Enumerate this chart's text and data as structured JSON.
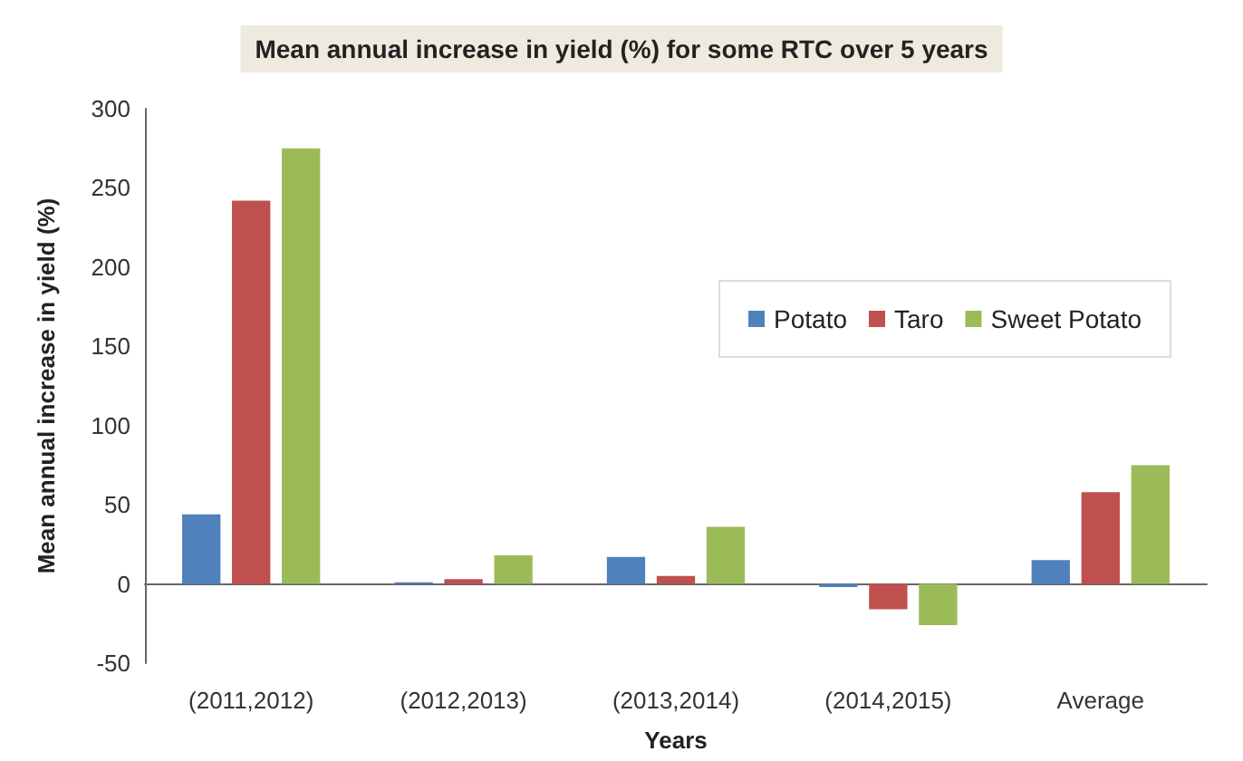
{
  "chart_data": {
    "type": "bar",
    "title": "Mean annual increase in yield (%) for some RTC over 5 years",
    "xlabel": "Years",
    "ylabel": "Mean annual increase in yield (%)",
    "categories": [
      "(2011,2012)",
      "(2012,2013)",
      "(2013,2014)",
      "(2014,2015)",
      "Average"
    ],
    "series": [
      {
        "name": "Potato",
        "color": "#4f81bd",
        "values": [
          44,
          1,
          17,
          -2,
          15
        ]
      },
      {
        "name": "Taro",
        "color": "#c0504d",
        "values": [
          242,
          3,
          5,
          -16,
          58
        ]
      },
      {
        "name": "Sweet Potato",
        "color": "#9bbb59",
        "values": [
          275,
          18,
          36,
          -26,
          75
        ]
      }
    ],
    "ylim": [
      -50,
      300
    ],
    "yticks": [
      -50,
      0,
      50,
      100,
      150,
      200,
      250,
      300
    ],
    "legend": "right"
  }
}
